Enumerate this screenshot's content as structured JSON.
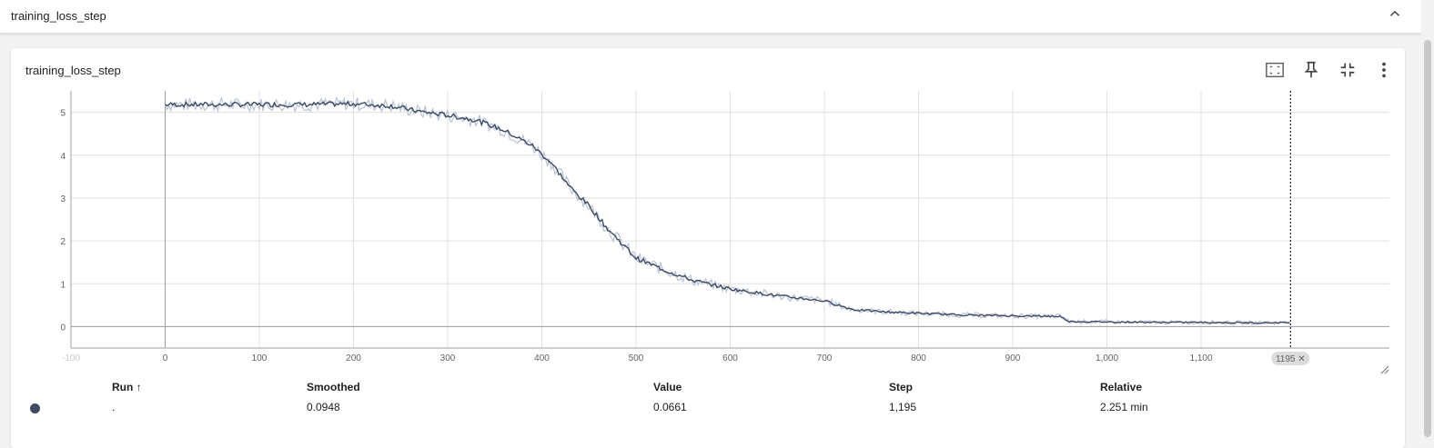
{
  "group": {
    "title": "training_loss_step"
  },
  "card": {
    "title": "training_loss_step"
  },
  "toolbar": {
    "icons": [
      "fit-domain-icon",
      "pin-icon",
      "collapse-card-icon",
      "more-vert-icon"
    ]
  },
  "table": {
    "headers": {
      "run": "Run ↑",
      "smoothed": "Smoothed",
      "value": "Value",
      "step": "Step",
      "relative": "Relative"
    },
    "row": {
      "run": ".",
      "smoothed": "0.0948",
      "value": "0.0661",
      "step": "1,195",
      "relative": "2.251 min",
      "color": "#3e4a61"
    }
  },
  "step_marker": {
    "label": "1195 ✕"
  },
  "chart_data": {
    "type": "line",
    "xlim": [
      -100,
      1300
    ],
    "ylim": [
      -0.5,
      5.5
    ],
    "x_ticks": [
      -100,
      0,
      100,
      200,
      300,
      400,
      500,
      600,
      700,
      800,
      900,
      1000,
      1100
    ],
    "x_tick_labels": [
      "-100",
      "0",
      "100",
      "200",
      "300",
      "400",
      "500",
      "600",
      "700",
      "800",
      "900",
      "1,000",
      "1,100"
    ],
    "y_ticks": [
      0,
      1,
      2,
      3,
      4,
      5
    ],
    "y_tick_labels": [
      "0",
      "1",
      "2",
      "3",
      "4",
      "5"
    ],
    "grid": true,
    "colors": {
      "smoothed": "#3e4a61",
      "raw": "#b8c3d6",
      "grid": "#e0e0e0",
      "axis": "#9e9e9e"
    },
    "series": [
      {
        "values_role": "smoothed",
        "x": [
          0,
          50,
          100,
          150,
          200,
          240,
          270,
          300,
          330,
          360,
          390,
          410,
          430,
          450,
          470,
          500,
          530,
          560,
          600,
          650,
          700,
          730,
          760,
          800,
          850,
          900,
          950,
          960,
          1000,
          1050,
          1100,
          1150,
          1195
        ],
        "y": [
          5.18,
          5.18,
          5.18,
          5.18,
          5.2,
          5.15,
          5.02,
          4.93,
          4.82,
          4.58,
          4.22,
          3.82,
          3.25,
          2.82,
          2.28,
          1.6,
          1.32,
          1.08,
          0.88,
          0.72,
          0.6,
          0.4,
          0.35,
          0.31,
          0.27,
          0.25,
          0.24,
          0.12,
          0.11,
          0.1,
          0.1,
          0.09,
          0.095
        ]
      }
    ],
    "step_marker_x": 1195
  }
}
